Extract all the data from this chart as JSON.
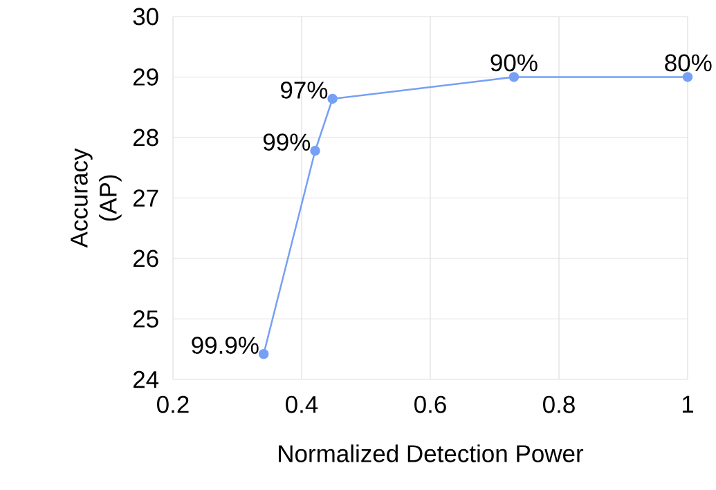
{
  "chart_data": {
    "type": "line",
    "xlabel": "Normalized Detection Power",
    "ylabel": "Accuracy (AP)",
    "x": [
      0.341,
      0.421,
      0.448,
      0.73,
      1
    ],
    "series": [
      {
        "color": "#76a0f5",
        "values": [
          24.42,
          27.78,
          28.64,
          29,
          29
        ]
      }
    ],
    "xlim": [
      0.2,
      1
    ],
    "ylim": [
      24,
      30
    ],
    "xticks": [
      0.2,
      0.4,
      0.6,
      0.8,
      1
    ],
    "yticks": [
      24,
      25,
      26,
      27,
      28,
      29,
      30
    ],
    "grid": true,
    "marker": "circle",
    "line_style": "solid",
    "annotations": [
      {
        "text": "99.9%",
        "x": 0.341,
        "y": 24.42
      },
      {
        "text": "99%",
        "x": 0.421,
        "y": 27.78
      },
      {
        "text": "97%",
        "x": 0.448,
        "y": 28.64
      },
      {
        "text": "90%",
        "x": 0.73,
        "y": 29
      },
      {
        "text": "80%",
        "x": 1,
        "y": 29
      }
    ]
  }
}
